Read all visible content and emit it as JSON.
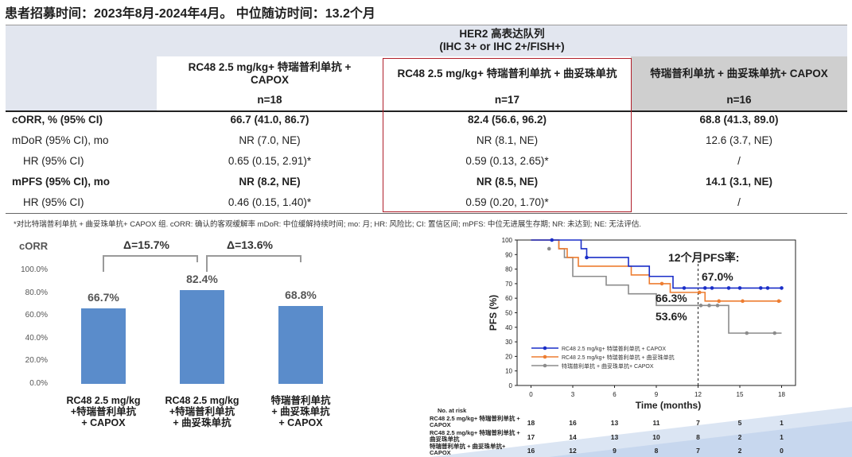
{
  "headline": "患者招募时间：2023年8月-2024年4月。 中位随访时间：13.2个月",
  "table": {
    "group_header_line1": "HER2 高表达队列",
    "group_header_line2": "(IHC 3+ or IHC 2+/FISH+)",
    "columns": [
      {
        "name_line1": "RC48 2.5 mg/kg+ 特瑞普利单抗 +",
        "name_line2": "CAPOX",
        "n": "n=18"
      },
      {
        "name_line1": "RC48 2.5 mg/kg+ 特瑞普利单抗 + 曲妥珠单抗",
        "name_line2": "",
        "n": "n=17"
      },
      {
        "name_line1": "特瑞普利单抗 + 曲妥珠单抗+ CAPOX",
        "name_line2": "",
        "n": "n=16"
      }
    ],
    "rows": [
      {
        "label": "cORR, % (95% CI)",
        "values": [
          "66.7 (41.0, 86.7)",
          "82.4 (56.6, 96.2)",
          "68.8 (41.3, 89.0)"
        ]
      },
      {
        "label": "mDoR (95% CI), mo",
        "values": [
          "NR (7.0, NE)",
          "NR (8.1, NE)",
          "12.6 (3.7, NE)"
        ]
      },
      {
        "label": "HR (95% CI)",
        "values": [
          "0.65 (0.15, 2.91)*",
          "0.59 (0.13, 2.65)*",
          "/"
        ]
      },
      {
        "label": "mPFS (95% CI), mo",
        "values": [
          "NR (8.2, NE)",
          "NR (8.5, NE)",
          "14.1 (3.1, NE)"
        ]
      },
      {
        "label": "HR (95% CI)",
        "values": [
          "0.46 (0.15, 1.40)*",
          "0.59 (0.20, 1.70)*",
          "/"
        ]
      }
    ]
  },
  "footnote": "*对比特瑞普利单抗 + 曲妥珠单抗+ CAPOX 组. cORR: 确认的客观缓解率 mDoR: 中位缓解持续时间; mo: 月; HR: 风险比; CI: 置信区间; mPFS: 中位无进展生存期; NR: 未达到; NE: 无法评估.",
  "colors": {
    "bar": "#5a8ccb",
    "blue": "#1a2ec8",
    "orange": "#ed7d31",
    "gray": "#8c8c8c",
    "header_band": "#e2e6ef",
    "red_box": "#b01e2a"
  },
  "chart_data": [
    {
      "type": "bar",
      "title": "cORR",
      "categories": [
        [
          "RC48 2.5 mg/kg",
          "+特瑞普利单抗",
          "+ CAPOX"
        ],
        [
          "RC48 2.5 mg/kg",
          "+特瑞普利单抗",
          "+ 曲妥珠单抗"
        ],
        [
          "特瑞普利单抗",
          "+ 曲妥珠单抗",
          "+ CAPOX"
        ]
      ],
      "values": [
        66.7,
        82.4,
        68.8
      ],
      "value_labels": [
        "66.7%",
        "82.4%",
        "68.8%"
      ],
      "yticks": [
        "0.0%",
        "20.0%",
        "40.0%",
        "60.0%",
        "80.0%",
        "100.0%"
      ],
      "ylim": [
        0,
        100
      ],
      "annotations": [
        {
          "text": "Δ=15.7%",
          "between": [
            0,
            1
          ]
        },
        {
          "text": "Δ=13.6%",
          "between": [
            1,
            2
          ]
        }
      ]
    },
    {
      "type": "line",
      "title": "12个月PFS率:",
      "xlabel": "Time (months)",
      "ylabel": "PFS (%)",
      "xlim": [
        -1,
        19
      ],
      "ylim": [
        0,
        100
      ],
      "xticks": [
        0,
        3,
        6,
        9,
        12,
        15,
        18
      ],
      "yticks": [
        0,
        10,
        20,
        30,
        40,
        50,
        60,
        70,
        80,
        90,
        100
      ],
      "reference_x": 12,
      "series": [
        {
          "name": "RC48 2.5 mg/kg+ 特瑞普利单抗 + CAPOX",
          "color": "blue",
          "steps": [
            [
              0,
              100
            ],
            [
              3.6,
              94
            ],
            [
              4,
              88
            ],
            [
              7,
              82
            ],
            [
              8.5,
              75
            ],
            [
              10.2,
              67
            ],
            [
              18,
              67
            ]
          ],
          "censors": [
            [
              1.5,
              100
            ],
            [
              4,
              88
            ],
            [
              11,
              67
            ],
            [
              12.5,
              67
            ],
            [
              13,
              67
            ],
            [
              14.2,
              67
            ],
            [
              15,
              67
            ],
            [
              16.5,
              67
            ],
            [
              17,
              67
            ],
            [
              18,
              67
            ]
          ]
        },
        {
          "name": "RC48 2.5 mg/kg+ 特瑞普利单抗 + 曲妥珠单抗",
          "color": "orange",
          "steps": [
            [
              0,
              100
            ],
            [
              2,
              94
            ],
            [
              2.6,
              88
            ],
            [
              3.4,
              82
            ],
            [
              7.2,
              76
            ],
            [
              8.5,
              70
            ],
            [
              10,
              64
            ],
            [
              12,
              64
            ],
            [
              12.5,
              58
            ],
            [
              18,
              58
            ]
          ],
          "censors": [
            [
              9.4,
              70
            ],
            [
              12.1,
              64
            ],
            [
              13.5,
              58
            ],
            [
              15.2,
              58
            ],
            [
              17.8,
              58
            ]
          ]
        },
        {
          "name": "特瑞普利单抗 + 曲妥珠单抗+ CAPOX",
          "color": "gray",
          "steps": [
            [
              0,
              100
            ],
            [
              2,
              94
            ],
            [
              2.4,
              88
            ],
            [
              3,
              75
            ],
            [
              5.4,
              69
            ],
            [
              7,
              63
            ],
            [
              9,
              55
            ],
            [
              14,
              55
            ],
            [
              14.2,
              36
            ],
            [
              18,
              36
            ]
          ],
          "censors": [
            [
              1.3,
              94
            ],
            [
              12.2,
              55
            ],
            [
              12.8,
              55
            ],
            [
              13.4,
              55
            ],
            [
              15.5,
              36
            ],
            [
              17.5,
              36
            ]
          ]
        }
      ],
      "annotations": [
        "67.0%",
        "66.3%",
        "53.6%"
      ],
      "risk_table": {
        "title": "No. at risk",
        "rows": [
          {
            "label": "RC48 2.5 mg/kg+ 特瑞普利单抗 + CAPOX",
            "values": [
              "18",
              "16",
              "13",
              "11",
              "7",
              "5",
              "1"
            ]
          },
          {
            "label": "RC48 2.5 mg/kg+ 特瑞普利单抗 + 曲妥珠单抗",
            "values": [
              "17",
              "14",
              "13",
              "10",
              "8",
              "2",
              "1"
            ]
          },
          {
            "label": "特瑞普利单抗 + 曲妥珠单抗+ CAPOX",
            "values": [
              "16",
              "12",
              "9",
              "8",
              "7",
              "2",
              "0"
            ]
          }
        ]
      }
    }
  ]
}
